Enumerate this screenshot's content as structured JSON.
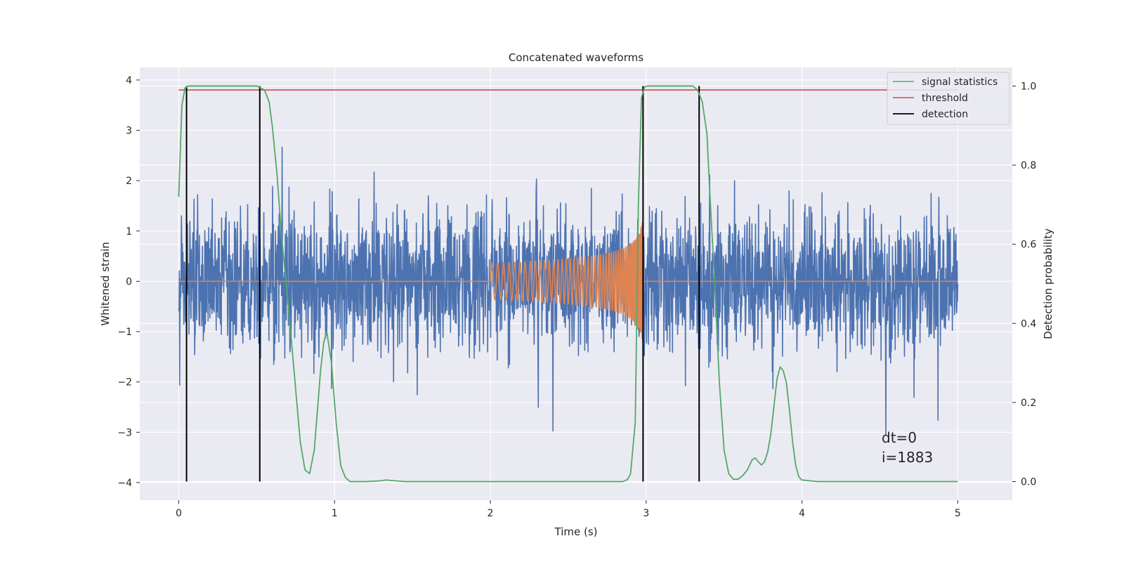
{
  "chart_data": {
    "type": "line",
    "title": "Concatenated waveforms",
    "xlabel": "Time (s)",
    "ylabel": "Whitened strain",
    "y2label": "Detection probability",
    "xlim": [
      -0.25,
      5.35
    ],
    "ylim": [
      -4.35,
      4.25
    ],
    "y2lim": [
      -0.047,
      1.047
    ],
    "xticks": [
      0,
      1,
      2,
      3,
      4,
      5
    ],
    "yticks": [
      -4,
      -3,
      -2,
      -1,
      0,
      1,
      2,
      3,
      4
    ],
    "y2ticks": [
      "0.0",
      "0.2",
      "0.4",
      "0.6",
      "0.8",
      "1.0"
    ],
    "grid": true,
    "legend_position": "top-right",
    "legend": [
      "signal statistics",
      "threshold",
      "detection"
    ],
    "annotation": [
      "dt=0",
      "i=1883"
    ],
    "series": [
      {
        "name": "signal statistics",
        "axis": "right",
        "color": "#55a868",
        "x": [
          0.0,
          0.02,
          0.04,
          0.06,
          0.1,
          0.2,
          0.3,
          0.4,
          0.5,
          0.55,
          0.58,
          0.6,
          0.63,
          0.66,
          0.7,
          0.74,
          0.78,
          0.81,
          0.84,
          0.87,
          0.89,
          0.91,
          0.93,
          0.95,
          0.98,
          1.01,
          1.04,
          1.07,
          1.1,
          1.2,
          1.3,
          1.33,
          1.36,
          1.45,
          1.6,
          2.0,
          2.5,
          2.85,
          2.88,
          2.9,
          2.93,
          2.95,
          2.97,
          2.99,
          3.01,
          3.1,
          3.2,
          3.3,
          3.33,
          3.36,
          3.39,
          3.41,
          3.44,
          3.47,
          3.5,
          3.53,
          3.56,
          3.59,
          3.62,
          3.65,
          3.68,
          3.7,
          3.72,
          3.74,
          3.76,
          3.78,
          3.8,
          3.82,
          3.84,
          3.86,
          3.88,
          3.9,
          3.92,
          3.94,
          3.96,
          3.98,
          4.0,
          4.1,
          4.3,
          4.6,
          5.0
        ],
        "y": [
          0.72,
          0.95,
          0.995,
          1.0,
          1.0,
          1.0,
          1.0,
          1.0,
          1.0,
          0.99,
          0.96,
          0.9,
          0.78,
          0.62,
          0.46,
          0.28,
          0.1,
          0.03,
          0.02,
          0.08,
          0.18,
          0.28,
          0.35,
          0.38,
          0.3,
          0.15,
          0.04,
          0.01,
          0.0,
          0.0,
          0.002,
          0.004,
          0.003,
          0.0,
          0.0,
          0.0,
          0.0,
          0.0,
          0.005,
          0.02,
          0.15,
          0.7,
          0.97,
          0.998,
          1.0,
          1.0,
          1.0,
          1.0,
          0.99,
          0.96,
          0.88,
          0.72,
          0.5,
          0.25,
          0.08,
          0.02,
          0.006,
          0.006,
          0.015,
          0.03,
          0.055,
          0.06,
          0.05,
          0.042,
          0.05,
          0.075,
          0.12,
          0.19,
          0.26,
          0.29,
          0.28,
          0.25,
          0.18,
          0.1,
          0.04,
          0.012,
          0.004,
          0.0,
          0.0,
          0.0,
          0.0
        ]
      },
      {
        "name": "threshold",
        "axis": "right",
        "color": "#c44e52",
        "x": [
          0.0,
          5.0
        ],
        "y": [
          0.99,
          0.99
        ]
      },
      {
        "name": "detection",
        "axis": "right",
        "color": "#000000",
        "vlines": [
          0.05,
          0.52,
          2.98,
          3.34
        ],
        "ymin": 0.0,
        "ymax": 1.0
      },
      {
        "name": "",
        "axis": "left",
        "color": "#4c72b0",
        "kind": "noise",
        "x_range": [
          0.0,
          5.0
        ],
        "amplitude_range": [
          -3.3,
          3.5
        ]
      },
      {
        "name": "",
        "axis": "left",
        "color": "#dd8452",
        "kind": "chirp",
        "x_range": [
          2.0,
          2.98
        ],
        "peak_amplitude": 1.5
      }
    ]
  }
}
